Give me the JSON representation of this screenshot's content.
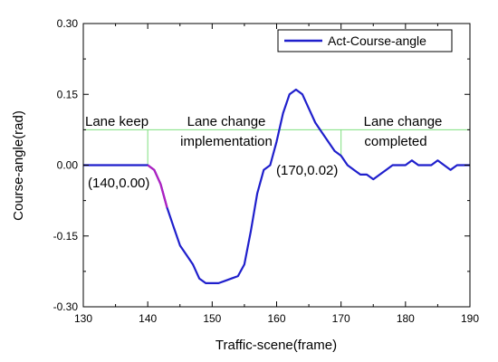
{
  "chart_data": {
    "type": "line",
    "xlabel": "Traffic-scene(frame)",
    "ylabel": "Course-angle(rad)",
    "xlim": [
      130,
      190
    ],
    "ylim": [
      -0.3,
      0.3
    ],
    "x_ticks": [
      "130",
      "140",
      "150",
      "160",
      "170",
      "180",
      "190"
    ],
    "y_ticks": [
      "-0.30",
      "-0.15",
      "0.00",
      "0.15",
      "0.30"
    ],
    "x_tick_values": [
      130,
      140,
      150,
      160,
      170,
      180,
      190
    ],
    "y_tick_values": [
      -0.3,
      -0.15,
      0.0,
      0.15,
      0.3
    ],
    "legend": {
      "position": "top-right",
      "entries": [
        "Act-Course-angle"
      ]
    },
    "series": [
      {
        "name": "Act-Course-angle",
        "color": "#1f1fcc",
        "x": [
          130,
          131,
          132,
          133,
          134,
          135,
          136,
          137,
          138,
          139,
          140,
          141,
          142,
          143,
          144,
          145,
          146,
          147,
          148,
          149,
          150,
          151,
          152,
          153,
          154,
          155,
          156,
          157,
          158,
          159,
          160,
          161,
          162,
          163,
          164,
          165,
          166,
          167,
          168,
          169,
          170,
          171,
          172,
          173,
          174,
          175,
          176,
          177,
          178,
          179,
          180,
          181,
          182,
          183,
          184,
          185,
          186,
          187,
          188,
          189,
          190
        ],
        "y": [
          0,
          0,
          0,
          0,
          0,
          0,
          0,
          0,
          0,
          0,
          0,
          -0.01,
          -0.04,
          -0.09,
          -0.13,
          -0.17,
          -0.19,
          -0.21,
          -0.24,
          -0.25,
          -0.25,
          -0.25,
          -0.245,
          -0.24,
          -0.235,
          -0.21,
          -0.14,
          -0.06,
          -0.01,
          0.0,
          0.05,
          0.11,
          0.15,
          0.16,
          0.15,
          0.12,
          0.09,
          0.07,
          0.05,
          0.03,
          0.02,
          0.0,
          -0.01,
          -0.02,
          -0.02,
          -0.03,
          -0.02,
          -0.01,
          0.0,
          0.0,
          0.0,
          0.01,
          0.0,
          0.0,
          0.0,
          0.01,
          0.0,
          -0.01,
          0.0,
          0.0,
          0.0
        ]
      }
    ],
    "highlight_segment": {
      "x_range": [
        140,
        143
      ],
      "color": "#b020c0"
    },
    "threshold_line": {
      "y": 0.075,
      "color": "#7fe07f"
    },
    "vertical_markers": [
      {
        "x": 140,
        "y_from": 0.0,
        "y_to": 0.075,
        "color": "#7fe07f"
      },
      {
        "x": 170,
        "y_from": 0.02,
        "y_to": 0.075,
        "color": "#7fe07f"
      }
    ],
    "regions": [
      {
        "label": "Lane keep"
      },
      {
        "label_line1": "Lane change",
        "label_line2": "implementation"
      },
      {
        "label_line1": "Lane change",
        "label_line2": "completed"
      }
    ],
    "annotations": [
      {
        "text": "(140,0.00)",
        "point": [
          140,
          0.0
        ]
      },
      {
        "text": "(170,0.02)",
        "point": [
          170,
          0.02
        ]
      }
    ]
  }
}
